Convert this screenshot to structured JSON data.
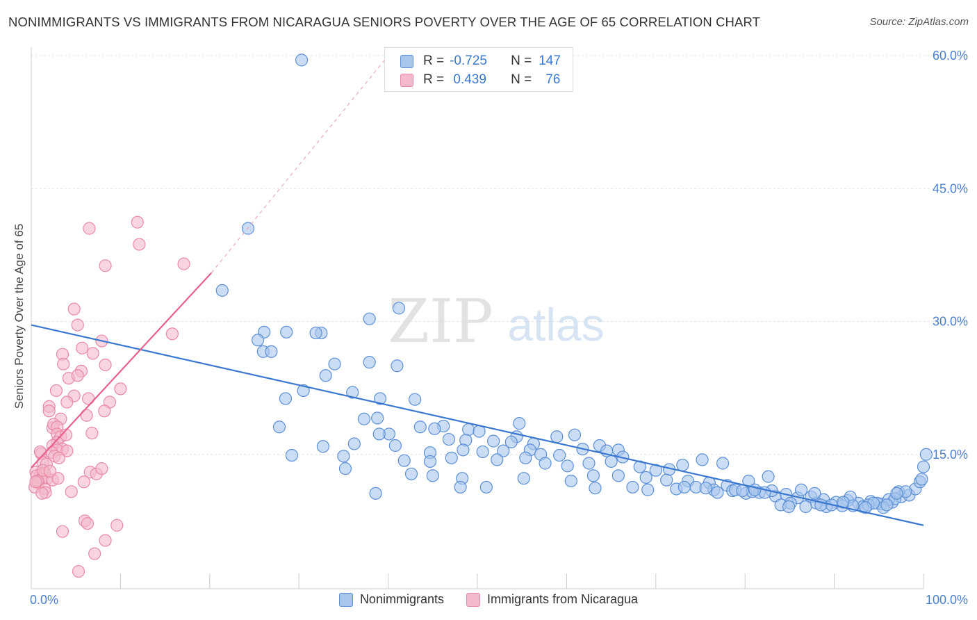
{
  "title": "NONIMMIGRANTS VS IMMIGRANTS FROM NICARAGUA SENIORS POVERTY OVER THE AGE OF 65 CORRELATION CHART",
  "source": "Source: ZipAtlas.com",
  "watermark": {
    "zip": "ZIP",
    "atlas": "atlas"
  },
  "colors": {
    "blue": "#3a78d0",
    "blue_fill": "#a8c6ec",
    "blue_stroke": "#5b8fd6",
    "pink": "#e8608c",
    "pink_fill": "#f4b9cc",
    "pink_stroke": "#e889a8",
    "tick": "#4a7fcf"
  },
  "stats": {
    "r_label": "R =",
    "n_label": "N =",
    "series1": {
      "r": "-0.725",
      "n": "147"
    },
    "series2": {
      "r": " 0.439",
      "n": "76"
    }
  },
  "legend": {
    "series1": "Nonimmigrants",
    "series2": "Immigrants from Nicaragua"
  },
  "chart_data": {
    "type": "scatter",
    "title": "NONIMMIGRANTS VS IMMIGRANTS FROM NICARAGUA SENIORS POVERTY OVER THE AGE OF 65 CORRELATION CHART",
    "xlabel": "",
    "ylabel": "Seniors Poverty Over the Age of 65",
    "xlim": [
      0,
      100
    ],
    "ylim": [
      0,
      60
    ],
    "x_tick_labels": [
      "0.0%",
      "100.0%"
    ],
    "y_ticks": [
      15,
      30,
      45,
      60
    ],
    "y_tick_labels": [
      "15.0%",
      "30.0%",
      "45.0%",
      "60.0%"
    ],
    "grid": true,
    "legend_position": "bottom",
    "series": [
      {
        "name": "Nonimmigrants",
        "color": "#3a78d0",
        "trend": {
          "x": [
            0,
            100
          ],
          "y": [
            29.6,
            7.0
          ]
        },
        "points": [
          [
            30.3,
            59.5
          ],
          [
            24.3,
            40.5
          ],
          [
            21.4,
            33.5
          ],
          [
            41.2,
            31.5
          ],
          [
            37.9,
            30.3
          ],
          [
            28.6,
            28.8
          ],
          [
            26.1,
            28.8
          ],
          [
            32.5,
            28.7
          ],
          [
            31.9,
            28.7
          ],
          [
            25.4,
            27.9
          ],
          [
            26.0,
            26.6
          ],
          [
            26.9,
            26.6
          ],
          [
            34.0,
            25.2
          ],
          [
            37.9,
            25.4
          ],
          [
            41.0,
            25.0
          ],
          [
            33.0,
            23.9
          ],
          [
            30.5,
            22.2
          ],
          [
            28.5,
            21.3
          ],
          [
            36.0,
            22.0
          ],
          [
            39.1,
            21.3
          ],
          [
            43.0,
            21.2
          ],
          [
            37.3,
            19.0
          ],
          [
            38.8,
            19.1
          ],
          [
            27.8,
            18.1
          ],
          [
            43.6,
            18.1
          ],
          [
            46.2,
            18.2
          ],
          [
            45.2,
            17.9
          ],
          [
            49.0,
            17.8
          ],
          [
            54.7,
            18.5
          ],
          [
            50.2,
            17.6
          ],
          [
            40.1,
            17.3
          ],
          [
            39.0,
            17.3
          ],
          [
            46.8,
            16.7
          ],
          [
            48.7,
            16.6
          ],
          [
            51.8,
            16.5
          ],
          [
            54.4,
            17.0
          ],
          [
            53.8,
            16.4
          ],
          [
            56.3,
            16.2
          ],
          [
            58.9,
            17.0
          ],
          [
            60.9,
            17.2
          ],
          [
            63.7,
            16.0
          ],
          [
            32.7,
            15.9
          ],
          [
            36.2,
            16.2
          ],
          [
            40.8,
            16.0
          ],
          [
            44.7,
            15.2
          ],
          [
            48.4,
            15.5
          ],
          [
            50.6,
            15.3
          ],
          [
            52.9,
            15.4
          ],
          [
            55.9,
            15.5
          ],
          [
            57.1,
            15.0
          ],
          [
            59.2,
            14.9
          ],
          [
            61.8,
            15.6
          ],
          [
            64.5,
            15.4
          ],
          [
            65.8,
            15.5
          ],
          [
            29.2,
            14.9
          ],
          [
            35.0,
            14.8
          ],
          [
            41.8,
            14.3
          ],
          [
            44.7,
            14.2
          ],
          [
            47.1,
            14.6
          ],
          [
            52.2,
            14.4
          ],
          [
            55.4,
            14.6
          ],
          [
            57.6,
            14.0
          ],
          [
            60.1,
            13.7
          ],
          [
            62.5,
            14.0
          ],
          [
            65.0,
            14.2
          ],
          [
            66.3,
            14.7
          ],
          [
            68.2,
            13.6
          ],
          [
            70.0,
            13.2
          ],
          [
            71.5,
            13.3
          ],
          [
            73.0,
            13.8
          ],
          [
            75.2,
            14.4
          ],
          [
            77.5,
            14.0
          ],
          [
            35.2,
            13.4
          ],
          [
            42.6,
            12.8
          ],
          [
            45.0,
            12.6
          ],
          [
            48.3,
            12.3
          ],
          [
            55.2,
            12.3
          ],
          [
            60.5,
            12.0
          ],
          [
            63.0,
            12.6
          ],
          [
            65.8,
            12.6
          ],
          [
            68.9,
            12.4
          ],
          [
            71.2,
            12.1
          ],
          [
            73.6,
            12.0
          ],
          [
            76.0,
            11.8
          ],
          [
            78.0,
            11.5
          ],
          [
            80.4,
            12.0
          ],
          [
            82.6,
            12.5
          ],
          [
            48.1,
            11.3
          ],
          [
            63.2,
            11.2
          ],
          [
            67.4,
            11.3
          ],
          [
            72.3,
            11.1
          ],
          [
            74.5,
            11.3
          ],
          [
            76.5,
            11.0
          ],
          [
            78.6,
            10.9
          ],
          [
            80.1,
            10.6
          ],
          [
            81.6,
            10.7
          ],
          [
            83.4,
            10.3
          ],
          [
            84.6,
            10.5
          ],
          [
            85.9,
            10.1
          ],
          [
            87.4,
            10.2
          ],
          [
            88.8,
            9.9
          ],
          [
            90.2,
            9.6
          ],
          [
            91.5,
            9.8
          ],
          [
            92.7,
            9.5
          ],
          [
            94.1,
            9.7
          ],
          [
            95.3,
            9.4
          ],
          [
            96.5,
            9.6
          ],
          [
            97.5,
            10.2
          ],
          [
            98.4,
            10.4
          ],
          [
            99.1,
            11.1
          ],
          [
            99.6,
            11.9
          ],
          [
            100.0,
            13.6
          ],
          [
            100.3,
            15.0
          ],
          [
            80.8,
            10.8
          ],
          [
            83.0,
            10.9
          ],
          [
            84.0,
            9.3
          ],
          [
            86.3,
            11.0
          ],
          [
            89.1,
            9.1
          ],
          [
            90.9,
            9.2
          ],
          [
            93.2,
            9.1
          ],
          [
            94.8,
            9.5
          ],
          [
            96.1,
            9.9
          ],
          [
            97.2,
            10.8
          ],
          [
            82.2,
            10.7
          ],
          [
            85.1,
            9.5
          ],
          [
            88.0,
            9.5
          ],
          [
            91.8,
            10.2
          ],
          [
            93.8,
            9.3
          ],
          [
            95.5,
            9.0
          ],
          [
            96.8,
            10.0
          ],
          [
            98.0,
            10.8
          ],
          [
            87.8,
            10.6
          ],
          [
            78.9,
            11.0
          ],
          [
            79.7,
            10.9
          ],
          [
            86.8,
            9.1
          ],
          [
            89.7,
            9.3
          ],
          [
            92.1,
            9.2
          ],
          [
            94.4,
            9.5
          ],
          [
            97.0,
            10.6
          ],
          [
            38.6,
            10.6
          ],
          [
            51.0,
            11.3
          ],
          [
            69.1,
            11.0
          ],
          [
            73.2,
            11.3
          ],
          [
            75.6,
            11.2
          ],
          [
            76.9,
            10.7
          ],
          [
            81.1,
            11.0
          ],
          [
            84.9,
            9.1
          ],
          [
            88.5,
            9.3
          ],
          [
            91.0,
            9.6
          ],
          [
            93.5,
            9.0
          ],
          [
            95.9,
            9.3
          ],
          [
            99.8,
            12.2
          ]
        ]
      },
      {
        "name": "Immigrants from Nicaragua",
        "color": "#e8608c",
        "trend": {
          "x": [
            0,
            20.2
          ],
          "y": [
            13.5,
            35.5
          ],
          "dashed_to": {
            "x": [
              20.2,
              40.0
            ],
            "y": [
              35.5,
              60.0
            ]
          }
        },
        "points": [
          [
            11.9,
            41.2
          ],
          [
            6.5,
            40.5
          ],
          [
            12.1,
            38.7
          ],
          [
            8.3,
            36.3
          ],
          [
            17.1,
            36.5
          ],
          [
            4.8,
            31.4
          ],
          [
            15.8,
            28.6
          ],
          [
            5.2,
            29.6
          ],
          [
            7.9,
            27.8
          ],
          [
            6.9,
            26.4
          ],
          [
            5.7,
            27.0
          ],
          [
            3.5,
            26.3
          ],
          [
            8.3,
            25.1
          ],
          [
            5.6,
            24.4
          ],
          [
            3.6,
            25.2
          ],
          [
            4.2,
            23.6
          ],
          [
            5.2,
            23.9
          ],
          [
            10.0,
            22.4
          ],
          [
            2.8,
            22.2
          ],
          [
            6.4,
            21.3
          ],
          [
            4.8,
            21.6
          ],
          [
            4.0,
            20.9
          ],
          [
            8.8,
            20.9
          ],
          [
            2.0,
            20.4
          ],
          [
            8.2,
            19.9
          ],
          [
            2.0,
            19.9
          ],
          [
            3.3,
            19.0
          ],
          [
            6.2,
            19.4
          ],
          [
            2.4,
            18.0
          ],
          [
            2.5,
            18.4
          ],
          [
            2.9,
            18.1
          ],
          [
            6.8,
            17.4
          ],
          [
            2.9,
            17.3
          ],
          [
            3.3,
            17.0
          ],
          [
            2.9,
            16.4
          ],
          [
            2.4,
            16.0
          ],
          [
            3.5,
            15.6
          ],
          [
            2.9,
            15.5
          ],
          [
            4.0,
            15.4
          ],
          [
            1.1,
            15.1
          ],
          [
            2.3,
            15.2
          ],
          [
            2.6,
            14.8
          ],
          [
            3.1,
            14.6
          ],
          [
            1.0,
            15.3
          ],
          [
            1.3,
            14.1
          ],
          [
            1.7,
            13.9
          ],
          [
            0.5,
            13.0
          ],
          [
            1.0,
            12.7
          ],
          [
            1.5,
            12.9
          ],
          [
            1.8,
            12.3
          ],
          [
            2.4,
            12.1
          ],
          [
            3.0,
            12.3
          ],
          [
            6.6,
            13.0
          ],
          [
            0.6,
            12.6
          ],
          [
            1.1,
            12.2
          ],
          [
            0.8,
            11.8
          ],
          [
            1.5,
            11.1
          ],
          [
            0.4,
            11.3
          ],
          [
            1.6,
            10.7
          ],
          [
            5.9,
            11.9
          ],
          [
            7.3,
            12.8
          ],
          [
            7.9,
            13.4
          ],
          [
            1.2,
            10.6
          ],
          [
            4.5,
            10.8
          ],
          [
            6.0,
            7.5
          ],
          [
            6.3,
            7.2
          ],
          [
            9.6,
            7.0
          ],
          [
            3.5,
            6.3
          ],
          [
            8.3,
            5.3
          ],
          [
            7.1,
            3.8
          ],
          [
            5.3,
            1.8
          ],
          [
            1.3,
            13.2
          ],
          [
            2.1,
            13.1
          ],
          [
            0.7,
            12.0
          ],
          [
            0.5,
            11.9
          ],
          [
            3.9,
            17.2
          ]
        ]
      }
    ]
  }
}
